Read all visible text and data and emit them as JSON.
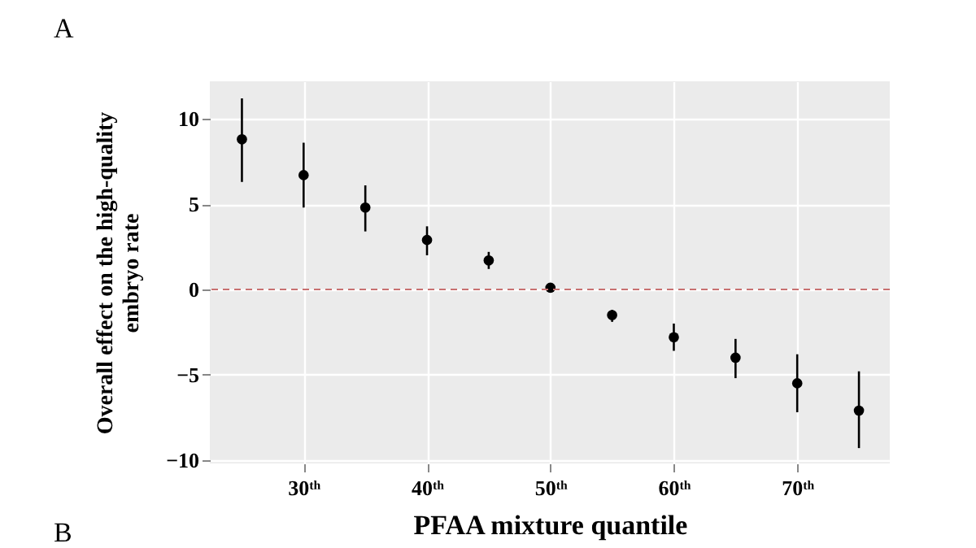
{
  "chart_data": {
    "type": "scatter",
    "xlabel": "PFAA mixture quantile",
    "ylabel": "Overall effect on the  high-quality\nembryo rate",
    "annotations": [
      "A",
      "B"
    ],
    "x": [
      25,
      30,
      35,
      40,
      45,
      50,
      55,
      60,
      65,
      70,
      75
    ],
    "series": [
      {
        "color": "#000000",
        "values": [
          8.8,
          6.7,
          4.8,
          2.9,
          1.7,
          0.1,
          -1.5,
          -2.8,
          -4.0,
          -5.5,
          -7.1
        ],
        "errors": [
          [
            6.3,
            11.2
          ],
          [
            4.8,
            8.6
          ],
          [
            3.4,
            6.1
          ],
          [
            2.0,
            3.7
          ],
          [
            1.2,
            2.2
          ],
          null,
          [
            -1.9,
            -1.2
          ],
          [
            -3.6,
            -2.0
          ],
          [
            -5.2,
            -2.9
          ],
          [
            -7.2,
            -3.8
          ],
          [
            -9.3,
            -4.8
          ]
        ]
      }
    ],
    "xlim": [
      22.4,
      77.5
    ],
    "ylim": [
      -10.2,
      12.2
    ],
    "xticks": [
      {
        "value": 30,
        "label": "30ᵗʰ"
      },
      {
        "value": 40,
        "label": "40ᵗʰ"
      },
      {
        "value": 50,
        "label": "50ᵗʰ"
      },
      {
        "value": 60,
        "label": "60ᵗʰ"
      },
      {
        "value": 70,
        "label": "70ᵗʰ"
      }
    ],
    "yticks": [
      -10,
      -5,
      0,
      5,
      10
    ],
    "ref_lines": [
      {
        "axis": "y",
        "value": 0,
        "color": "#c87070",
        "line_style": "dashed"
      }
    ],
    "grid": true,
    "marker": "circle"
  }
}
